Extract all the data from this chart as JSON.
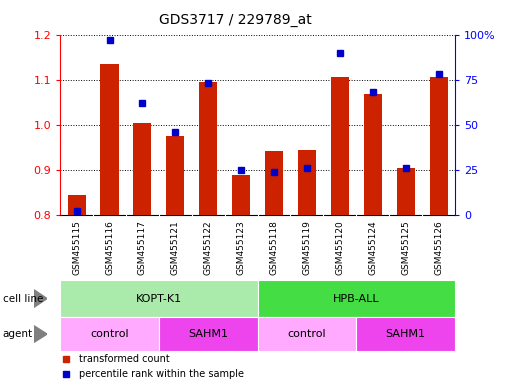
{
  "title": "GDS3717 / 229789_at",
  "samples": [
    "GSM455115",
    "GSM455116",
    "GSM455117",
    "GSM455121",
    "GSM455122",
    "GSM455123",
    "GSM455118",
    "GSM455119",
    "GSM455120",
    "GSM455124",
    "GSM455125",
    "GSM455126"
  ],
  "transformed_counts": [
    0.845,
    1.135,
    1.005,
    0.975,
    1.095,
    0.888,
    0.942,
    0.945,
    1.105,
    1.068,
    0.905,
    1.105
  ],
  "percentile_ranks": [
    2,
    97,
    62,
    46,
    73,
    25,
    24,
    26,
    90,
    68,
    26,
    78
  ],
  "ylim_left": [
    0.8,
    1.2
  ],
  "ylim_right": [
    0,
    100
  ],
  "yticks_left": [
    0.8,
    0.9,
    1.0,
    1.1,
    1.2
  ],
  "yticks_right": [
    0,
    25,
    50,
    75,
    100
  ],
  "ytick_labels_right": [
    "0",
    "25",
    "50",
    "75",
    "100%"
  ],
  "cell_line_groups": [
    {
      "label": "KOPT-K1",
      "start": 0,
      "end": 6,
      "color": "#AAEAAA"
    },
    {
      "label": "HPB-ALL",
      "start": 6,
      "end": 12,
      "color": "#44DD44"
    }
  ],
  "agent_groups": [
    {
      "label": "control",
      "start": 0,
      "end": 3,
      "color": "#FFAAFF"
    },
    {
      "label": "SAHM1",
      "start": 3,
      "end": 6,
      "color": "#EE44EE"
    },
    {
      "label": "control",
      "start": 6,
      "end": 9,
      "color": "#FFAAFF"
    },
    {
      "label": "SAHM1",
      "start": 9,
      "end": 12,
      "color": "#EE44EE"
    }
  ],
  "bar_color": "#CC2200",
  "dot_color": "#0000CC",
  "bar_width": 0.55,
  "plot_bg_color": "#FFFFFF",
  "xtick_bg_color": "#CCCCCC",
  "legend_red_label": "transformed count",
  "legend_blue_label": "percentile rank within the sample"
}
